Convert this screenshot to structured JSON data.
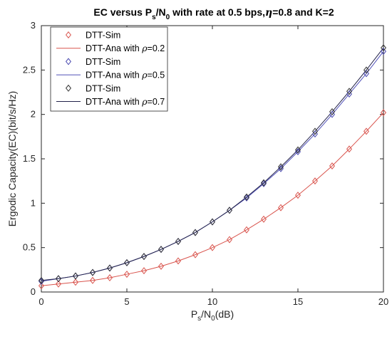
{
  "chart_data": {
    "type": "line",
    "title": "EC versus P_s/N_0 with rate at 0.5 bps,η=0.8 and K=2",
    "xlabel": "P_s/N_0(dB)",
    "ylabel": "Ergodic Capacity(EC)(bit/s/Hz)",
    "xlim": [
      0,
      20
    ],
    "ylim": [
      0,
      3
    ],
    "xticks": [
      0,
      5,
      10,
      15,
      20
    ],
    "yticks": [
      0,
      0.5,
      1,
      1.5,
      2,
      2.5,
      3
    ],
    "xtick_labels": [
      "0",
      "5",
      "10",
      "15",
      "20"
    ],
    "ytick_labels": [
      "0",
      "0.5",
      "1",
      "1.5",
      "2",
      "2.5",
      "3"
    ],
    "grid": false,
    "legend_position": "top-left",
    "x": [
      0,
      1,
      2,
      3,
      4,
      5,
      6,
      7,
      8,
      9,
      10,
      11,
      12,
      13,
      14,
      15,
      16,
      17,
      18,
      19,
      20
    ],
    "series": [
      {
        "name": "DTT-Sim",
        "kind": "markers",
        "marker": "diamond",
        "color": "#d9544d",
        "values": [
          0.07,
          0.09,
          0.11,
          0.13,
          0.16,
          0.2,
          0.24,
          0.29,
          0.35,
          0.42,
          0.5,
          0.59,
          0.7,
          0.82,
          0.95,
          1.09,
          1.25,
          1.42,
          1.61,
          1.81,
          2.02
        ]
      },
      {
        "name": "DTT-Ana with ρ=0.2",
        "kind": "line",
        "color": "#d9544d",
        "values": [
          0.07,
          0.09,
          0.11,
          0.13,
          0.16,
          0.2,
          0.24,
          0.29,
          0.35,
          0.42,
          0.5,
          0.59,
          0.7,
          0.82,
          0.95,
          1.09,
          1.25,
          1.42,
          1.61,
          1.81,
          2.02
        ]
      },
      {
        "name": "DTT-Sim",
        "kind": "markers",
        "marker": "diamond",
        "color": "#4a4ab0",
        "values": [
          0.12,
          0.15,
          0.18,
          0.22,
          0.27,
          0.33,
          0.4,
          0.48,
          0.57,
          0.67,
          0.79,
          0.92,
          1.06,
          1.22,
          1.39,
          1.58,
          1.78,
          2.0,
          2.23,
          2.46,
          2.71
        ]
      },
      {
        "name": "DTT-Ana with ρ=0.5",
        "kind": "line",
        "color": "#5050b8",
        "values": [
          0.12,
          0.15,
          0.18,
          0.22,
          0.27,
          0.33,
          0.4,
          0.48,
          0.57,
          0.67,
          0.79,
          0.92,
          1.06,
          1.22,
          1.39,
          1.58,
          1.78,
          2.0,
          2.23,
          2.46,
          2.71
        ]
      },
      {
        "name": "DTT-Sim",
        "kind": "markers",
        "marker": "diamond",
        "color": "#333333",
        "values": [
          0.13,
          0.15,
          0.18,
          0.22,
          0.27,
          0.33,
          0.4,
          0.48,
          0.57,
          0.67,
          0.79,
          0.92,
          1.07,
          1.23,
          1.41,
          1.6,
          1.81,
          2.03,
          2.26,
          2.5,
          2.75
        ]
      },
      {
        "name": "DTT-Ana with ρ=0.7",
        "kind": "line",
        "color": "#22224a",
        "values": [
          0.13,
          0.15,
          0.18,
          0.22,
          0.27,
          0.33,
          0.4,
          0.48,
          0.57,
          0.67,
          0.79,
          0.92,
          1.07,
          1.23,
          1.41,
          1.6,
          1.81,
          2.03,
          2.26,
          2.5,
          2.75
        ]
      }
    ]
  }
}
